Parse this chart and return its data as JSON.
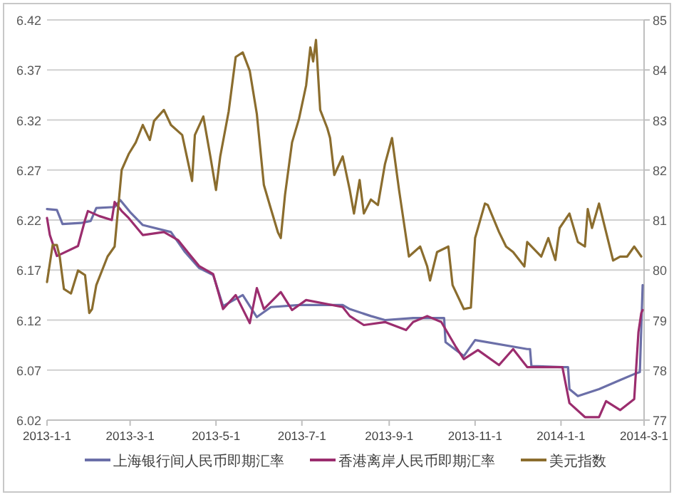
{
  "chart_data": {
    "type": "line",
    "grid": "y",
    "legend": "bottom",
    "line_style": "solid",
    "marker": "none",
    "xlim": [
      "2013-01-01",
      "2014-03-01"
    ],
    "xticks": [
      {
        "value": "2013-01-01",
        "label": "2013-1-1"
      },
      {
        "value": "2013-03-01",
        "label": "2013-3-1"
      },
      {
        "value": "2013-05-01",
        "label": "2013-5-1"
      },
      {
        "value": "2013-07-01",
        "label": "2013-7-1"
      },
      {
        "value": "2013-09-01",
        "label": "2013-9-1"
      },
      {
        "value": "2013-11-01",
        "label": "2013-11-1"
      },
      {
        "value": "2014-01-01",
        "label": "2014-1-1"
      },
      {
        "value": "2014-03-01",
        "label": "2014-3-1"
      }
    ],
    "ylim": [
      6.02,
      6.42
    ],
    "yticks": [
      6.02,
      6.07,
      6.12,
      6.17,
      6.22,
      6.27,
      6.32,
      6.37,
      6.42
    ],
    "y2lim": [
      77,
      85
    ],
    "y2ticks": [
      77,
      78,
      79,
      80,
      81,
      82,
      83,
      84,
      85
    ],
    "series": [
      {
        "name": "上海银行间人民币即期汇率",
        "color": "#6b6fa8",
        "x": [
          "2013-01-01",
          "2013-01-08",
          "2013-01-12",
          "2013-01-25",
          "2013-02-01",
          "2013-02-05",
          "2013-02-18",
          "2013-02-22",
          "2013-03-01",
          "2013-03-10",
          "2013-03-30",
          "2013-04-09",
          "2013-04-19",
          "2013-04-29",
          "2013-05-06",
          "2013-05-20",
          "2013-05-30",
          "2013-06-09",
          "2013-06-29",
          "2013-07-30",
          "2013-08-04",
          "2013-08-19",
          "2013-08-29",
          "2013-09-18",
          "2013-10-08",
          "2013-10-10",
          "2013-10-11",
          "2013-10-24",
          "2013-11-01",
          "2013-12-08",
          "2013-12-10",
          "2013-12-11",
          "2014-01-02",
          "2014-01-06",
          "2014-01-07",
          "2014-01-13",
          "2014-01-28",
          "2014-02-12",
          "2014-02-22",
          "2014-02-26",
          "2014-02-28"
        ],
        "values": [
          6.231,
          6.23,
          6.216,
          6.217,
          6.219,
          6.232,
          6.233,
          6.24,
          6.228,
          6.215,
          6.208,
          6.188,
          6.172,
          6.165,
          6.134,
          6.145,
          6.123,
          6.133,
          6.135,
          6.135,
          6.131,
          6.124,
          6.12,
          6.122,
          6.122,
          6.122,
          6.098,
          6.084,
          6.1,
          6.091,
          6.091,
          6.074,
          6.073,
          6.073,
          6.051,
          6.044,
          6.051,
          6.06,
          6.066,
          6.068,
          6.155
        ]
      },
      {
        "name": "香港离岸人民币即期汇率",
        "color": "#9b2d6e",
        "x": [
          "2013-01-01",
          "2013-01-03",
          "2013-01-08",
          "2013-01-23",
          "2013-01-28",
          "2013-01-30",
          "2013-02-07",
          "2013-02-16",
          "2013-02-18",
          "2013-02-23",
          "2013-02-28",
          "2013-03-10",
          "2013-03-25",
          "2013-04-04",
          "2013-04-12",
          "2013-04-19",
          "2013-04-29",
          "2013-05-06",
          "2013-05-15",
          "2013-05-25",
          "2013-05-30",
          "2013-06-04",
          "2013-06-16",
          "2013-06-24",
          "2013-07-04",
          "2013-07-30",
          "2013-08-04",
          "2013-08-14",
          "2013-08-29",
          "2013-09-13",
          "2013-09-18",
          "2013-09-28",
          "2013-10-08",
          "2013-10-18",
          "2013-10-24",
          "2013-11-03",
          "2013-11-18",
          "2013-11-28",
          "2013-12-08",
          "2014-01-02",
          "2014-01-07",
          "2014-01-18",
          "2014-01-28",
          "2014-02-02",
          "2014-02-12",
          "2014-02-22",
          "2014-02-25",
          "2014-02-27",
          "2014-02-28"
        ],
        "values": [
          6.222,
          6.205,
          6.184,
          6.194,
          6.22,
          6.229,
          6.224,
          6.22,
          6.238,
          6.229,
          6.222,
          6.205,
          6.208,
          6.2,
          6.186,
          6.174,
          6.166,
          6.131,
          6.145,
          6.117,
          6.152,
          6.131,
          6.148,
          6.13,
          6.14,
          6.133,
          6.124,
          6.115,
          6.118,
          6.11,
          6.118,
          6.124,
          6.118,
          6.094,
          6.081,
          6.09,
          6.075,
          6.091,
          6.073,
          6.073,
          6.037,
          6.023,
          6.023,
          6.039,
          6.03,
          6.041,
          6.108,
          6.127,
          6.13
        ]
      },
      {
        "name": "美元指数",
        "color": "#8b6d2e",
        "axis": "y2",
        "x": [
          "2013-01-01",
          "2013-01-05",
          "2013-01-08",
          "2013-01-10",
          "2013-01-13",
          "2013-01-18",
          "2013-01-23",
          "2013-01-28",
          "2013-01-31",
          "2013-02-02",
          "2013-02-05",
          "2013-02-13",
          "2013-02-18",
          "2013-02-23",
          "2013-02-28",
          "2013-03-05",
          "2013-03-10",
          "2013-03-15",
          "2013-03-18",
          "2013-03-25",
          "2013-03-30",
          "2013-04-07",
          "2013-04-14",
          "2013-04-16",
          "2013-04-22",
          "2013-04-27",
          "2013-05-01",
          "2013-05-04",
          "2013-05-10",
          "2013-05-15",
          "2013-05-20",
          "2013-05-25",
          "2013-05-30",
          "2013-06-04",
          "2013-06-09",
          "2013-06-14",
          "2013-06-16",
          "2013-06-19",
          "2013-06-24",
          "2013-06-29",
          "2013-07-04",
          "2013-07-07",
          "2013-07-09",
          "2013-07-11",
          "2013-07-14",
          "2013-07-19",
          "2013-07-21",
          "2013-07-24",
          "2013-07-30",
          "2013-08-04",
          "2013-08-07",
          "2013-08-11",
          "2013-08-14",
          "2013-08-19",
          "2013-08-24",
          "2013-08-29",
          "2013-09-03",
          "2013-09-08",
          "2013-09-15",
          "2013-09-23",
          "2013-09-28",
          "2013-09-30",
          "2013-10-05",
          "2013-10-13",
          "2013-10-16",
          "2013-10-24",
          "2013-10-29",
          "2013-11-01",
          "2013-11-08",
          "2013-11-10",
          "2013-11-18",
          "2013-11-23",
          "2013-11-28",
          "2013-12-06",
          "2013-12-08",
          "2013-12-18",
          "2013-12-23",
          "2013-12-28",
          "2013-12-31",
          "2014-01-07",
          "2014-01-13",
          "2014-01-18",
          "2014-01-20",
          "2014-01-23",
          "2014-01-28",
          "2014-02-02",
          "2014-02-07",
          "2014-02-12",
          "2014-02-17",
          "2014-02-22",
          "2014-02-27"
        ],
        "values": [
          79.76,
          80.5,
          80.5,
          80.27,
          79.62,
          79.53,
          79.99,
          79.9,
          79.14,
          79.22,
          79.7,
          80.27,
          80.47,
          82.0,
          82.32,
          82.55,
          82.9,
          82.6,
          82.98,
          83.2,
          82.9,
          82.7,
          81.78,
          82.7,
          83.07,
          82.27,
          81.6,
          82.27,
          83.17,
          84.26,
          84.35,
          83.98,
          83.12,
          81.7,
          81.22,
          80.75,
          80.64,
          81.5,
          82.55,
          83.03,
          83.69,
          84.45,
          84.17,
          84.6,
          83.2,
          82.84,
          82.64,
          81.9,
          82.27,
          81.6,
          81.13,
          81.8,
          81.13,
          81.41,
          81.3,
          82.12,
          82.64,
          81.6,
          80.27,
          80.47,
          80.07,
          79.79,
          80.36,
          80.47,
          79.7,
          79.22,
          79.25,
          80.64,
          81.33,
          81.3,
          80.76,
          80.47,
          80.36,
          80.07,
          80.56,
          80.27,
          80.64,
          80.2,
          80.84,
          81.13,
          80.56,
          80.47,
          81.22,
          80.84,
          81.33,
          80.76,
          80.19,
          80.27,
          80.27,
          80.47,
          80.27
        ]
      }
    ]
  }
}
